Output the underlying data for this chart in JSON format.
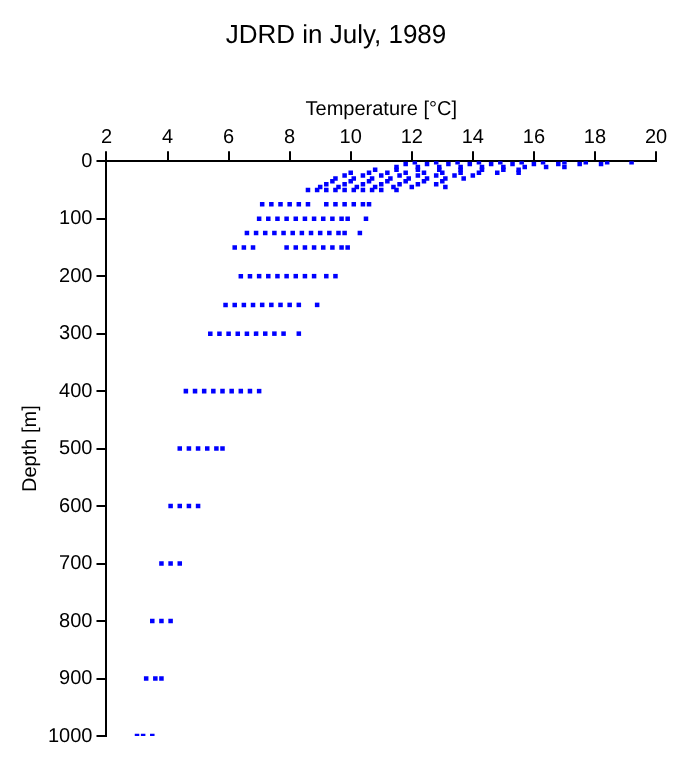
{
  "chart_data": {
    "type": "scatter",
    "title": "JDRD in July, 1989",
    "xlabel": "Temperature [°C]",
    "ylabel": "Depth [m]",
    "xlim": [
      2,
      20
    ],
    "xticks": [
      2,
      4,
      6,
      8,
      10,
      12,
      14,
      16,
      18,
      20
    ],
    "ylim": [
      1000,
      0
    ],
    "yticks": [
      0,
      100,
      200,
      300,
      400,
      500,
      600,
      700,
      800,
      900,
      1000
    ],
    "grid": false,
    "legend": false,
    "marker": "square",
    "series": [
      {
        "color": "#0000ff",
        "x": [
          12.1,
          12.8,
          13.5,
          14.2,
          14.9,
          15.6,
          16.3,
          17.0,
          17.7,
          18.4,
          19.2,
          11.8,
          12.5,
          13.2,
          13.9,
          14.6,
          15.3,
          16.0,
          16.8,
          17.5,
          18.2,
          11.5,
          12.2,
          12.9,
          13.6,
          14.3,
          15.0,
          15.7,
          16.4,
          17.0,
          10.8,
          11.5,
          12.2,
          12.9,
          13.6,
          14.3,
          15.0,
          15.5,
          10.0,
          10.6,
          11.2,
          11.8,
          12.4,
          13.0,
          13.6,
          14.2,
          14.8,
          15.5,
          9.8,
          10.4,
          11.0,
          11.6,
          12.2,
          12.8,
          13.4,
          14.0,
          9.5,
          10.1,
          10.7,
          11.3,
          11.9,
          12.5,
          13.1,
          13.7,
          9.4,
          10.0,
          10.6,
          11.2,
          11.8,
          12.4,
          13.0,
          9.2,
          9.8,
          10.4,
          11.0,
          11.6,
          12.2,
          12.8,
          9.0,
          9.6,
          10.2,
          10.8,
          11.4,
          12.0,
          13.1,
          8.6,
          8.9,
          9.2,
          9.5,
          9.8,
          10.1,
          10.4,
          10.7,
          11.0,
          11.5,
          7.1,
          7.4,
          7.7,
          8.0,
          8.3,
          8.6,
          9.2,
          9.5,
          9.8,
          10.1,
          10.4,
          10.6,
          7.0,
          7.3,
          7.6,
          7.9,
          8.2,
          8.5,
          8.8,
          9.1,
          9.4,
          9.7,
          9.9,
          10.5,
          6.6,
          6.9,
          7.2,
          7.5,
          7.8,
          8.1,
          8.4,
          8.7,
          9.0,
          9.3,
          9.6,
          9.8,
          10.3,
          6.2,
          6.5,
          6.8,
          7.9,
          8.2,
          8.5,
          8.8,
          9.1,
          9.4,
          9.7,
          9.9,
          6.4,
          6.7,
          7.0,
          7.3,
          7.6,
          7.9,
          8.2,
          8.5,
          8.8,
          9.2,
          9.5,
          5.9,
          6.2,
          6.5,
          6.8,
          7.1,
          7.4,
          7.7,
          8.0,
          8.3,
          8.9,
          5.4,
          5.7,
          6.0,
          6.3,
          6.6,
          6.9,
          7.2,
          7.5,
          7.8,
          8.3,
          4.6,
          4.9,
          5.2,
          5.5,
          5.8,
          6.1,
          6.4,
          6.7,
          7.0,
          4.4,
          4.7,
          5.0,
          5.3,
          5.6,
          5.8,
          4.1,
          4.4,
          4.7,
          5.0,
          3.8,
          4.1,
          4.4,
          3.5,
          3.8,
          4.1,
          3.3,
          3.6,
          3.8,
          3.0,
          3.2,
          3.5
        ],
        "values": [
          2,
          2,
          2,
          2,
          2,
          2,
          2,
          2,
          2,
          2,
          2,
          5,
          5,
          5,
          5,
          5,
          5,
          5,
          5,
          5,
          5,
          10,
          10,
          10,
          10,
          10,
          10,
          10,
          10,
          10,
          15,
          15,
          15,
          15,
          15,
          15,
          15,
          15,
          20,
          20,
          20,
          20,
          20,
          20,
          20,
          20,
          20,
          20,
          25,
          25,
          25,
          25,
          25,
          25,
          25,
          25,
          30,
          30,
          30,
          30,
          30,
          30,
          30,
          30,
          35,
          35,
          35,
          35,
          35,
          35,
          35,
          40,
          40,
          40,
          40,
          40,
          40,
          40,
          45,
          45,
          45,
          45,
          45,
          45,
          45,
          50,
          50,
          50,
          50,
          50,
          50,
          50,
          50,
          50,
          50,
          75,
          75,
          75,
          75,
          75,
          75,
          75,
          75,
          75,
          75,
          75,
          75,
          100,
          100,
          100,
          100,
          100,
          100,
          100,
          100,
          100,
          100,
          100,
          100,
          125,
          125,
          125,
          125,
          125,
          125,
          125,
          125,
          125,
          125,
          125,
          125,
          125,
          150,
          150,
          150,
          150,
          150,
          150,
          150,
          150,
          150,
          150,
          150,
          200,
          200,
          200,
          200,
          200,
          200,
          200,
          200,
          200,
          200,
          200,
          250,
          250,
          250,
          250,
          250,
          250,
          250,
          250,
          250,
          250,
          300,
          300,
          300,
          300,
          300,
          300,
          300,
          300,
          300,
          300,
          400,
          400,
          400,
          400,
          400,
          400,
          400,
          400,
          400,
          500,
          500,
          500,
          500,
          500,
          500,
          600,
          600,
          600,
          600,
          700,
          700,
          700,
          800,
          800,
          800,
          900,
          900,
          900,
          1000,
          1000,
          1000
        ]
      }
    ]
  }
}
